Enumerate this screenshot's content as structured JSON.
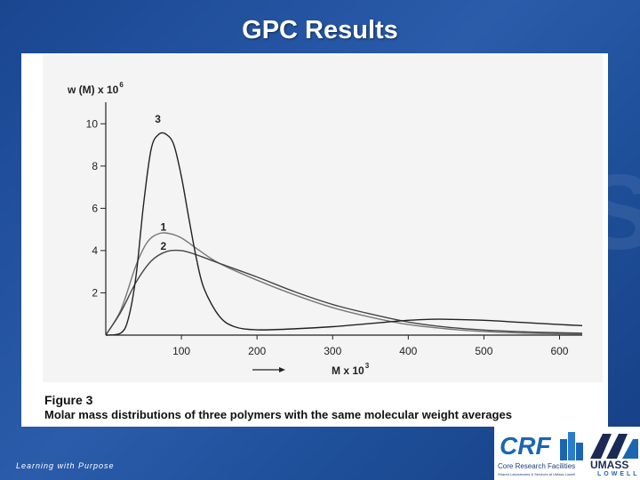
{
  "slide": {
    "title": "GPC Results",
    "footer": "Learning with Purpose"
  },
  "figure": {
    "caption_title": "Figure 3",
    "caption_text": "Molar mass distributions of three polymers with the same molecular weight averages"
  },
  "logo": {
    "crf": "CRF",
    "crf_subtitle": "Core Research Facilities",
    "crf_tiny": "Shared Laboratories & Services at UMass Lowell",
    "umass": "UMASS",
    "lowell": "LOWELL"
  },
  "chart_data": {
    "type": "line",
    "ylabel": "w (M) x 10",
    "ylabel_exp": "6",
    "xlabel": "M x 10",
    "xlabel_exp": "3",
    "xlim": [
      0,
      630
    ],
    "ylim": [
      0,
      10.6
    ],
    "x_ticks": [
      100,
      200,
      300,
      400,
      500,
      600
    ],
    "y_ticks": [
      2,
      4,
      6,
      8,
      10
    ],
    "series": [
      {
        "name": "1",
        "color": "#777777",
        "x": [
          0,
          20,
          40,
          55,
          70,
          85,
          100,
          120,
          150,
          200,
          250,
          300,
          350,
          400,
          450,
          500,
          550,
          600,
          630
        ],
        "y": [
          0,
          1.2,
          3.3,
          4.4,
          4.8,
          4.8,
          4.6,
          4.1,
          3.4,
          2.6,
          1.9,
          1.3,
          0.85,
          0.5,
          0.3,
          0.17,
          0.1,
          0.06,
          0.05
        ]
      },
      {
        "name": "2",
        "color": "#444444",
        "x": [
          0,
          20,
          40,
          60,
          80,
          100,
          120,
          150,
          200,
          250,
          300,
          350,
          400,
          450,
          500,
          550,
          600,
          630
        ],
        "y": [
          0,
          1.1,
          2.5,
          3.5,
          3.95,
          4.0,
          3.8,
          3.4,
          2.75,
          2.05,
          1.45,
          1.0,
          0.62,
          0.38,
          0.24,
          0.16,
          0.11,
          0.09
        ]
      },
      {
        "name": "3",
        "color": "#222222",
        "x": [
          0,
          20,
          30,
          40,
          50,
          60,
          70,
          80,
          90,
          100,
          110,
          120,
          130,
          150,
          170,
          200,
          250,
          300,
          350,
          400,
          430,
          450,
          500,
          550,
          600,
          630
        ],
        "y": [
          0,
          0.1,
          0.8,
          2.8,
          6.2,
          8.8,
          9.5,
          9.5,
          9.0,
          7.5,
          5.5,
          3.6,
          2.2,
          0.9,
          0.4,
          0.25,
          0.3,
          0.4,
          0.55,
          0.7,
          0.75,
          0.75,
          0.7,
          0.6,
          0.5,
          0.45
        ]
      }
    ]
  }
}
